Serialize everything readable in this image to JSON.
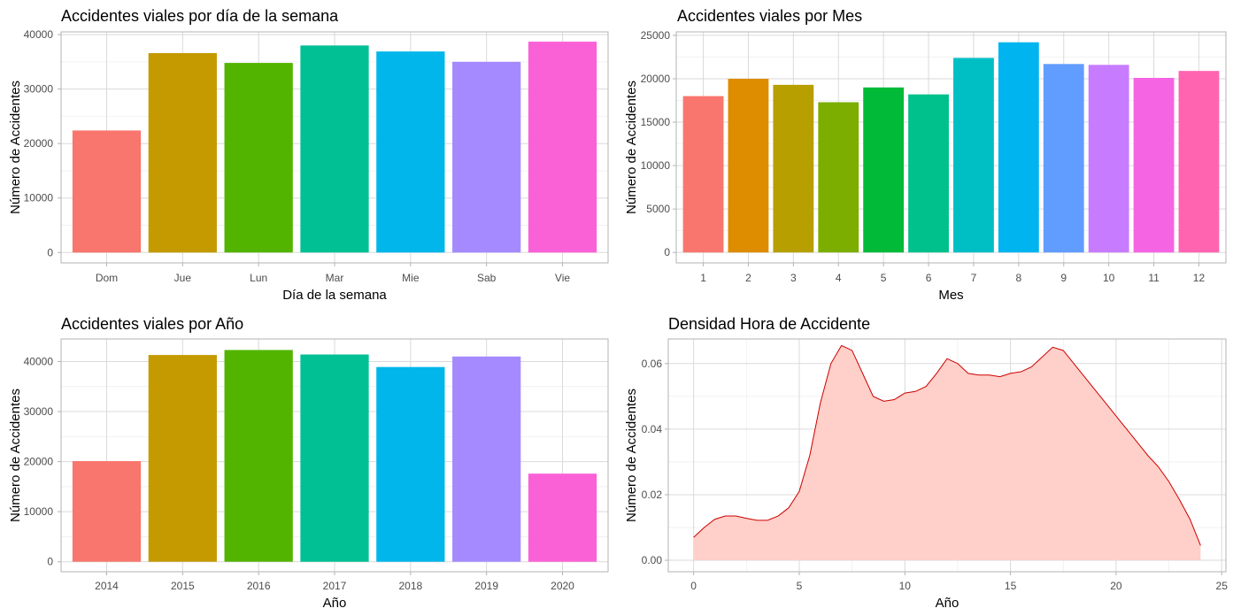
{
  "chart_data": [
    {
      "id": "dia",
      "type": "bar",
      "title": "Accidentes viales por día de la semana",
      "xlabel": "Día de la semana",
      "ylabel": "Número de Accidentes",
      "categories": [
        "Dom",
        "Jue",
        "Lun",
        "Mar",
        "Mie",
        "Sab",
        "Vie"
      ],
      "values": [
        22400,
        36600,
        34800,
        38000,
        36900,
        35000,
        38700
      ],
      "colors": [
        "#F8766D",
        "#C49A00",
        "#53B400",
        "#00C094",
        "#00B6EB",
        "#A58AFF",
        "#FB61D7"
      ],
      "ylim": [
        -1900,
        40500
      ],
      "yticks": [
        0,
        10000,
        20000,
        30000,
        40000
      ],
      "grid": true
    },
    {
      "id": "mes",
      "type": "bar",
      "title": "Accidentes viales por Mes",
      "xlabel": "Mes",
      "ylabel": "Número de Accidentes",
      "categories": [
        "1",
        "2",
        "3",
        "4",
        "5",
        "6",
        "7",
        "8",
        "9",
        "10",
        "11",
        "12"
      ],
      "values": [
        18000,
        20000,
        19300,
        17300,
        19000,
        18200,
        22400,
        24200,
        21700,
        21600,
        20100,
        20900
      ],
      "colors": [
        "#F8766D",
        "#DE8C00",
        "#B79F00",
        "#7CAE00",
        "#00BA38",
        "#00C08B",
        "#00BFC4",
        "#00B4F0",
        "#619CFF",
        "#C77CFF",
        "#F564E3",
        "#FF64B0"
      ],
      "ylim": [
        -1200,
        25400
      ],
      "yticks": [
        0,
        5000,
        10000,
        15000,
        20000,
        25000
      ],
      "grid": true
    },
    {
      "id": "anio",
      "type": "bar",
      "title": "Accidentes viales por Año",
      "xlabel": "Año",
      "ylabel": "Número de Accidentes",
      "categories": [
        "2014",
        "2015",
        "2016",
        "2017",
        "2018",
        "2019",
        "2020"
      ],
      "values": [
        20100,
        41300,
        42300,
        41400,
        38900,
        41000,
        17600
      ],
      "colors": [
        "#F8766D",
        "#C49A00",
        "#53B400",
        "#00C094",
        "#00B6EB",
        "#A58AFF",
        "#FB61D7"
      ],
      "ylim": [
        -2000,
        44500
      ],
      "yticks": [
        0,
        10000,
        20000,
        30000,
        40000
      ],
      "grid": true
    },
    {
      "id": "hora",
      "type": "area",
      "title": "Densidad Hora de Accidente",
      "xlabel": "Año",
      "ylabel": "Número de Accidentes",
      "xlim": [
        -1.2,
        25.2
      ],
      "ylim": [
        -0.0035,
        0.0675
      ],
      "xticks": [
        0,
        5,
        10,
        15,
        20,
        25
      ],
      "yticks": [
        0.0,
        0.02,
        0.04,
        0.06
      ],
      "ytick_labels": [
        "0.00",
        "0.02",
        "0.04",
        "0.06"
      ],
      "fill_color": "#FFCFC9",
      "line_color": "#CC0000",
      "grid": true,
      "x": [
        0,
        0.5,
        1,
        1.5,
        2,
        2.5,
        3,
        3.5,
        4,
        4.5,
        5,
        5.5,
        6,
        6.5,
        7,
        7.5,
        8,
        8.5,
        9,
        9.5,
        10,
        10.5,
        11,
        11.5,
        12,
        12.5,
        13,
        13.5,
        14,
        14.5,
        15,
        15.5,
        16,
        16.5,
        17,
        17.5,
        18,
        18.5,
        19,
        19.5,
        20,
        20.5,
        21,
        21.5,
        22,
        22.5,
        23,
        23.5,
        24
      ],
      "y": [
        0.007,
        0.01,
        0.0125,
        0.0135,
        0.0135,
        0.0128,
        0.0122,
        0.0122,
        0.0135,
        0.016,
        0.021,
        0.032,
        0.048,
        0.06,
        0.0655,
        0.064,
        0.057,
        0.05,
        0.0485,
        0.049,
        0.051,
        0.0515,
        0.053,
        0.057,
        0.0615,
        0.06,
        0.057,
        0.0565,
        0.0565,
        0.056,
        0.057,
        0.0575,
        0.059,
        0.062,
        0.065,
        0.064,
        0.06,
        0.056,
        0.052,
        0.048,
        0.044,
        0.04,
        0.036,
        0.032,
        0.0285,
        0.024,
        0.0185,
        0.0125,
        0.0045
      ]
    }
  ]
}
